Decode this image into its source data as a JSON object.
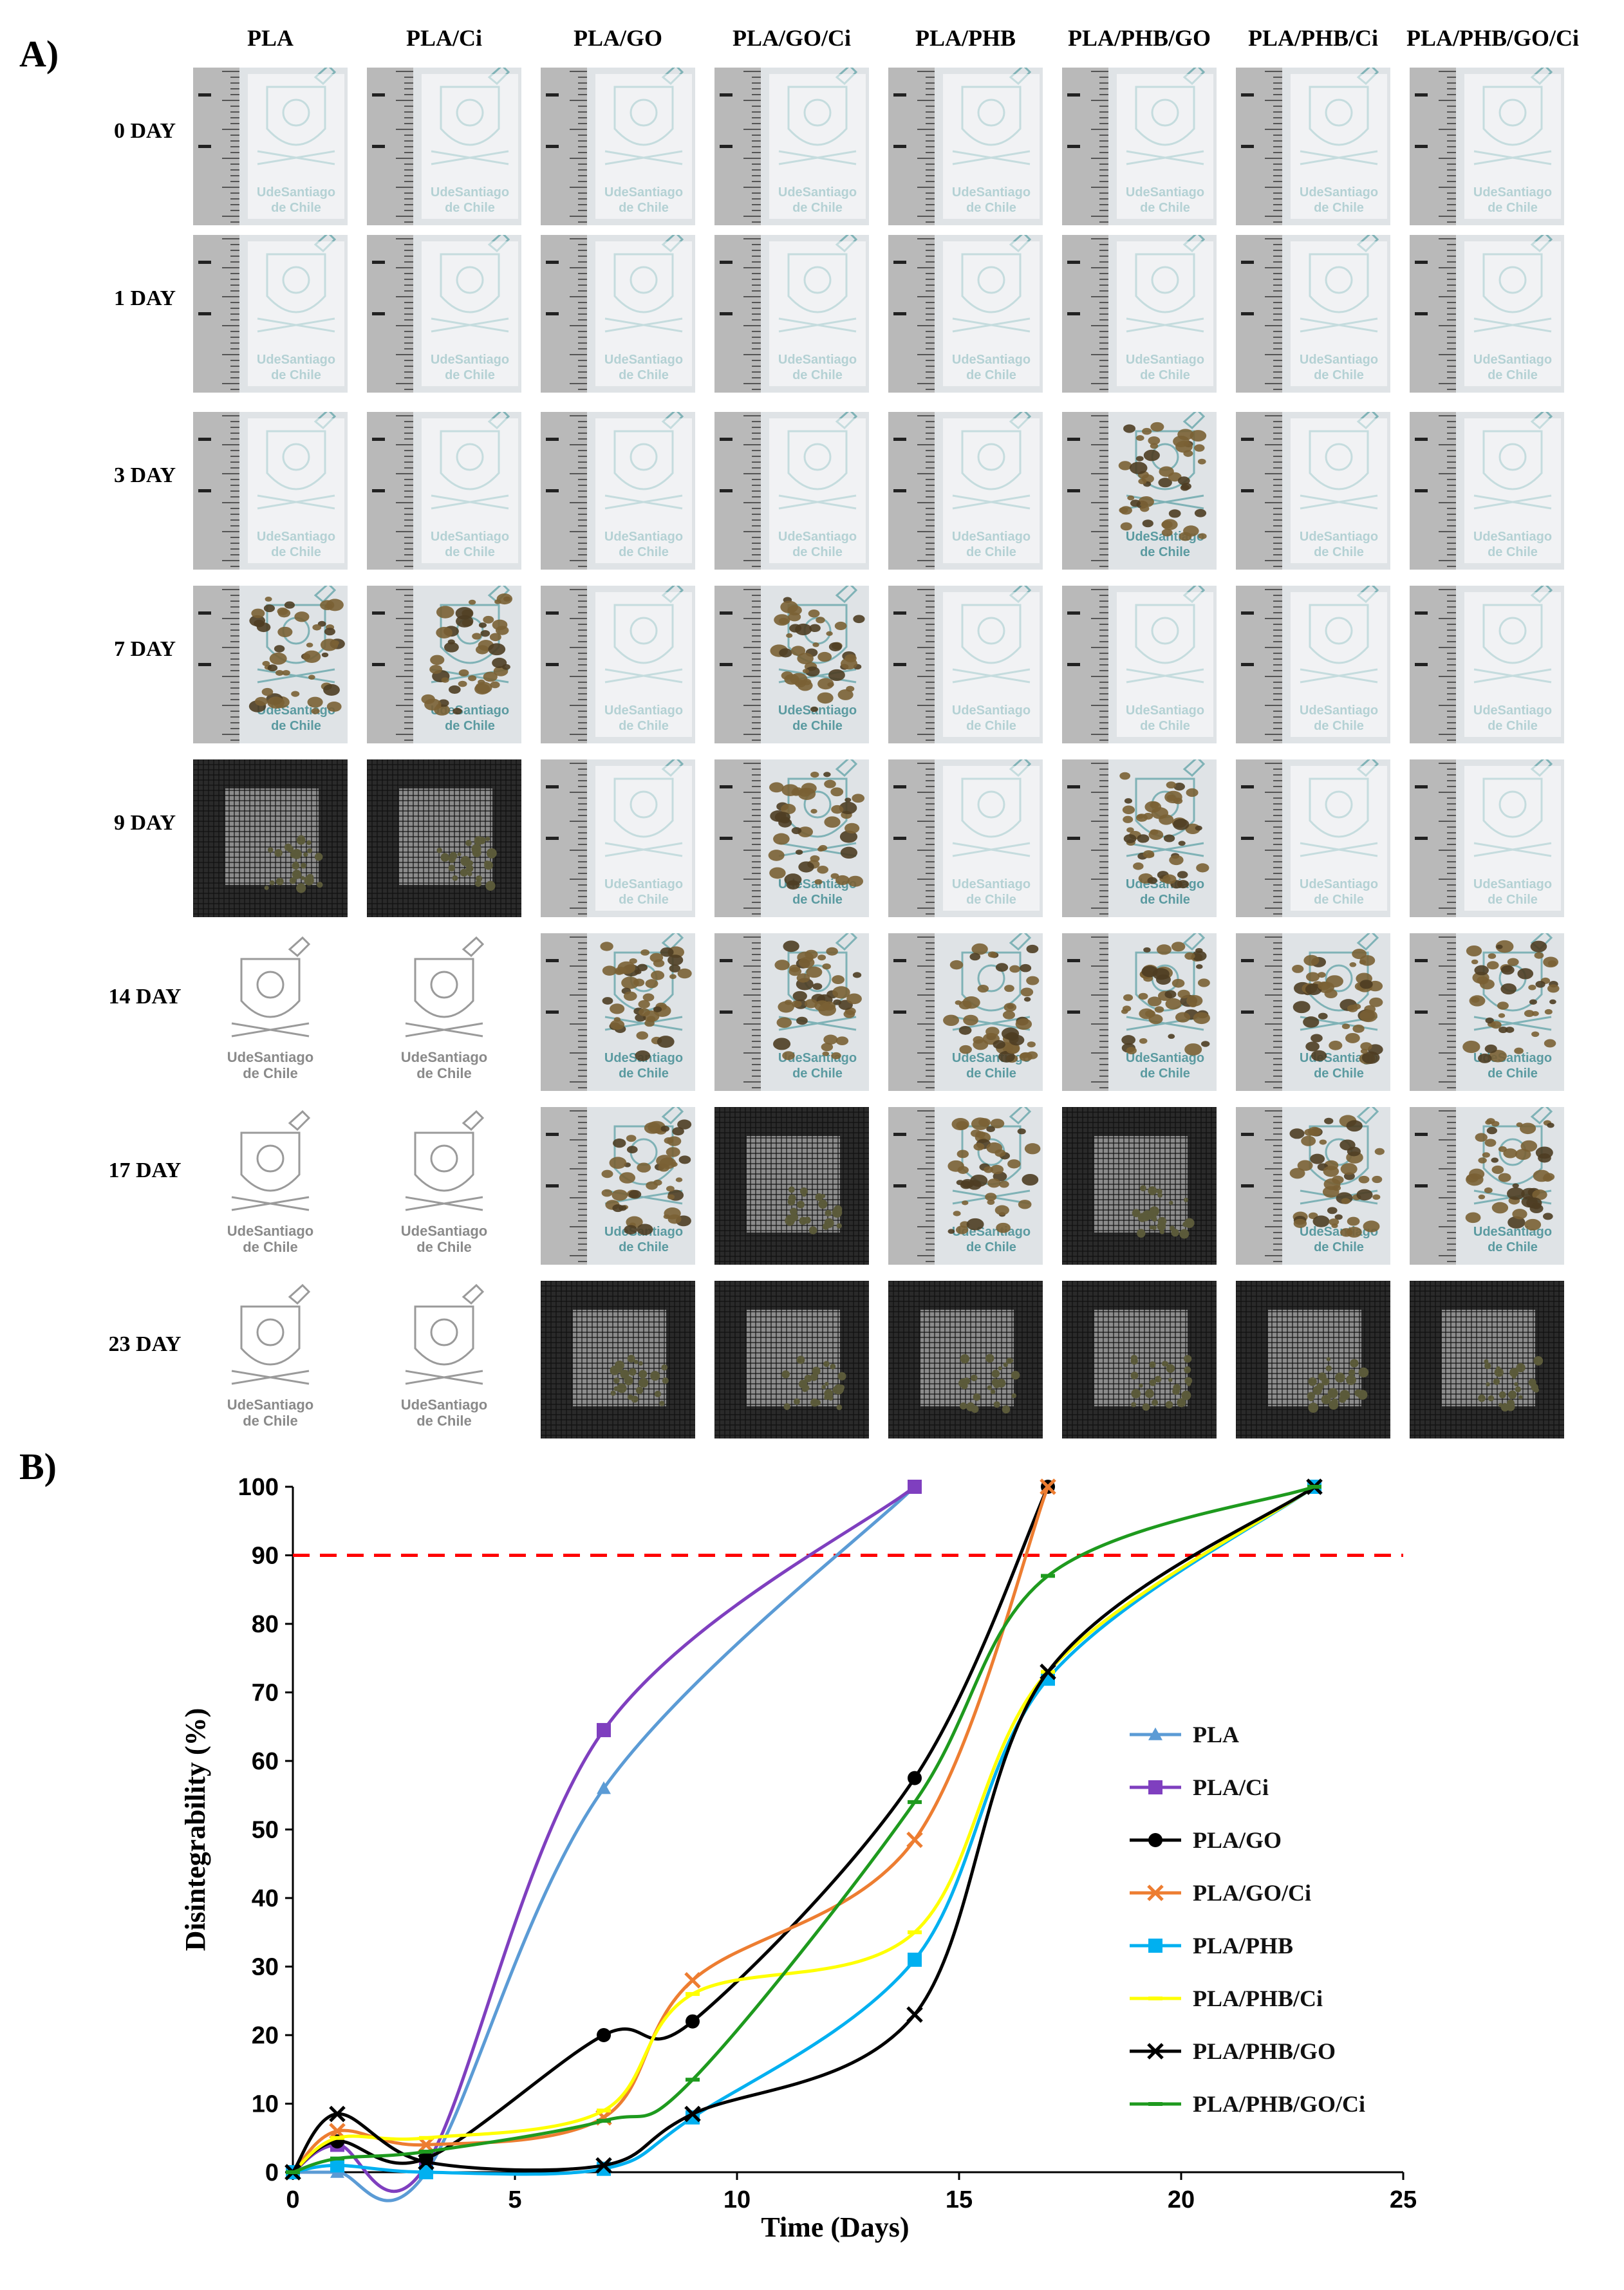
{
  "panel_a": {
    "label": "A)",
    "columns": [
      "PLA",
      "PLA/Ci",
      "PLA/GO",
      "PLA/GO/Ci",
      "PLA/PHB",
      "PLA/PHB/GO",
      "PLA/PHB/Ci",
      "PLA/PHB/GO/Ci"
    ],
    "rows": [
      "0 DAY",
      "1 DAY",
      "3 DAY",
      "7 DAY",
      "9 DAY",
      "14 DAY",
      "17 DAY",
      "23 DAY"
    ],
    "logo_text": [
      "UdeSantiago",
      "de Chile"
    ],
    "cell_states": [
      [
        "film",
        "film",
        "film",
        "film",
        "film",
        "film",
        "film",
        "film"
      ],
      [
        "film",
        "film",
        "film",
        "film",
        "film",
        "film",
        "film",
        "film"
      ],
      [
        "film",
        "film",
        "film",
        "film",
        "film",
        "fragments",
        "film",
        "film"
      ],
      [
        "fragments",
        "fragments",
        "film",
        "fragments",
        "film",
        "film",
        "film",
        "film"
      ],
      [
        "mesh",
        "mesh",
        "film",
        "fragments",
        "film",
        "fragments",
        "film",
        "film"
      ],
      [
        "logo",
        "logo",
        "fragments",
        "fragments",
        "fragments",
        "fragments",
        "fragments",
        "fragments"
      ],
      [
        "logo",
        "logo",
        "fragments",
        "mesh",
        "fragments",
        "mesh",
        "fragments",
        "fragments"
      ],
      [
        "logo",
        "logo",
        "mesh",
        "mesh",
        "mesh",
        "mesh",
        "mesh",
        "mesh"
      ]
    ]
  },
  "panel_b": {
    "label": "B)"
  },
  "chart_data": {
    "type": "line",
    "xlabel": "Time  (Days)",
    "ylabel": "Disintegrability  (%)",
    "xlim": [
      0,
      25
    ],
    "ylim": [
      0,
      100
    ],
    "xticks": [
      0,
      5,
      10,
      15,
      20,
      25
    ],
    "yticks": [
      0,
      10,
      20,
      30,
      40,
      50,
      60,
      70,
      80,
      90,
      100
    ],
    "grid": false,
    "legend_position": "right",
    "reference_line": {
      "y": 90,
      "color": "#ff0000",
      "style": "dashed"
    },
    "series": [
      {
        "name": "PLA",
        "color": "#5b9bd5",
        "marker": "triangle",
        "x": [
          0,
          1,
          3,
          7,
          14
        ],
        "y": [
          0,
          0,
          0,
          56,
          100
        ]
      },
      {
        "name": "PLA/Ci",
        "color": "#7f3fbf",
        "marker": "square",
        "x": [
          0,
          1,
          3,
          7,
          14
        ],
        "y": [
          0,
          4,
          1,
          64.5,
          100
        ]
      },
      {
        "name": "PLA/GO",
        "color": "#000000",
        "marker": "circle",
        "x": [
          0,
          1,
          3,
          7,
          9,
          14,
          17
        ],
        "y": [
          0,
          4.5,
          2,
          20,
          22,
          57.5,
          100
        ]
      },
      {
        "name": "PLA/GO/Ci",
        "color": "#ed7d31",
        "marker": "x",
        "x": [
          0,
          1,
          3,
          7,
          9,
          14,
          17
        ],
        "y": [
          0,
          6,
          4,
          8,
          28,
          48.5,
          100
        ]
      },
      {
        "name": "PLA/PHB",
        "color": "#00b0f0",
        "marker": "square",
        "x": [
          0,
          1,
          3,
          7,
          9,
          14,
          17,
          23
        ],
        "y": [
          0,
          1,
          0,
          0.5,
          8,
          31,
          72,
          100
        ]
      },
      {
        "name": "PLA/PHB/Ci",
        "color": "#ffff00",
        "marker": "dash",
        "x": [
          0,
          1,
          3,
          7,
          9,
          14,
          17,
          23
        ],
        "y": [
          0,
          5,
          5,
          9,
          26,
          35,
          73,
          100
        ]
      },
      {
        "name": "PLA/PHB/GO",
        "color": "#000000",
        "marker": "x",
        "x": [
          0,
          1,
          3,
          7,
          9,
          14,
          17,
          23
        ],
        "y": [
          0,
          8.5,
          1.5,
          1,
          8.5,
          23,
          73,
          100
        ]
      },
      {
        "name": "PLA/PHB/GO/Ci",
        "color": "#1e9a1e",
        "marker": "dash",
        "x": [
          0,
          1,
          3,
          7,
          9,
          14,
          17,
          23
        ],
        "y": [
          0,
          2,
          3,
          7.5,
          13.5,
          54,
          87,
          100
        ]
      }
    ]
  }
}
